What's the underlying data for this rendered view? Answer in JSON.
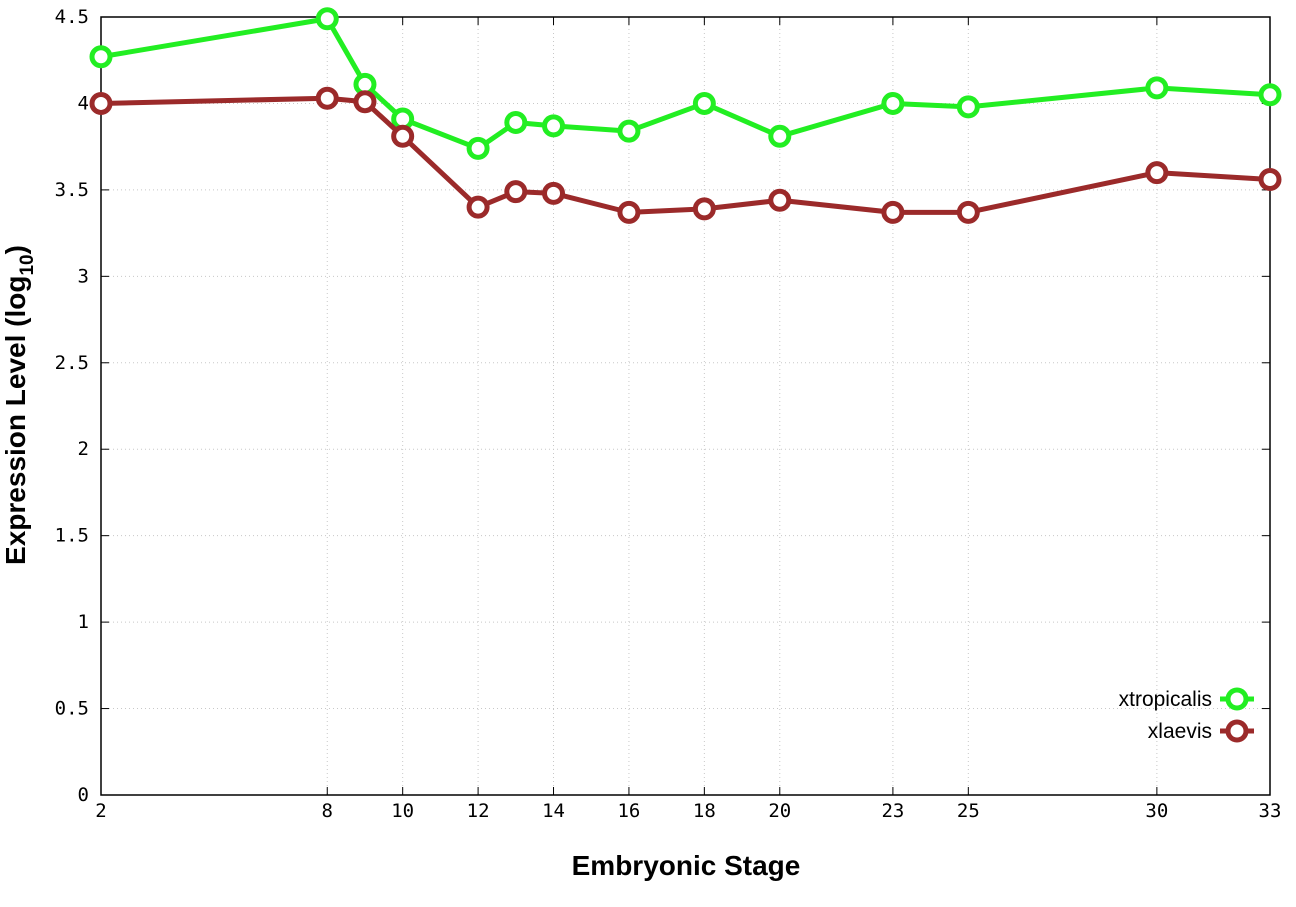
{
  "chart_data": {
    "type": "line",
    "xlabel": "Embryonic Stage",
    "ylabel_main": "Expression Level (log",
    "ylabel_sub": "10",
    "ylabel_close": ")",
    "x": [
      2,
      8,
      9,
      10,
      12,
      13,
      14,
      16,
      18,
      20,
      23,
      25,
      30,
      33
    ],
    "x_ticks": [
      2,
      8,
      10,
      12,
      14,
      16,
      18,
      20,
      23,
      25,
      30,
      33
    ],
    "y_ticks": [
      "0",
      "0.5",
      "1",
      "1.5",
      "2",
      "2.5",
      "3",
      "3.5",
      "4",
      "4.5"
    ],
    "xlim": [
      2,
      33
    ],
    "ylim": [
      0,
      4.5
    ],
    "grid": true,
    "legend_position": "bottom-right",
    "series": [
      {
        "name": "xtropicalis",
        "color": "#22ee22",
        "values": [
          4.27,
          4.49,
          4.11,
          3.91,
          3.74,
          3.89,
          3.87,
          3.84,
          4.0,
          3.81,
          4.0,
          3.98,
          4.09,
          4.05
        ]
      },
      {
        "name": "xlaevis",
        "color": "#9b2a2a",
        "values": [
          4.0,
          4.03,
          4.01,
          3.81,
          3.4,
          3.49,
          3.48,
          3.37,
          3.39,
          3.44,
          3.37,
          3.37,
          3.6,
          3.56
        ]
      }
    ]
  }
}
